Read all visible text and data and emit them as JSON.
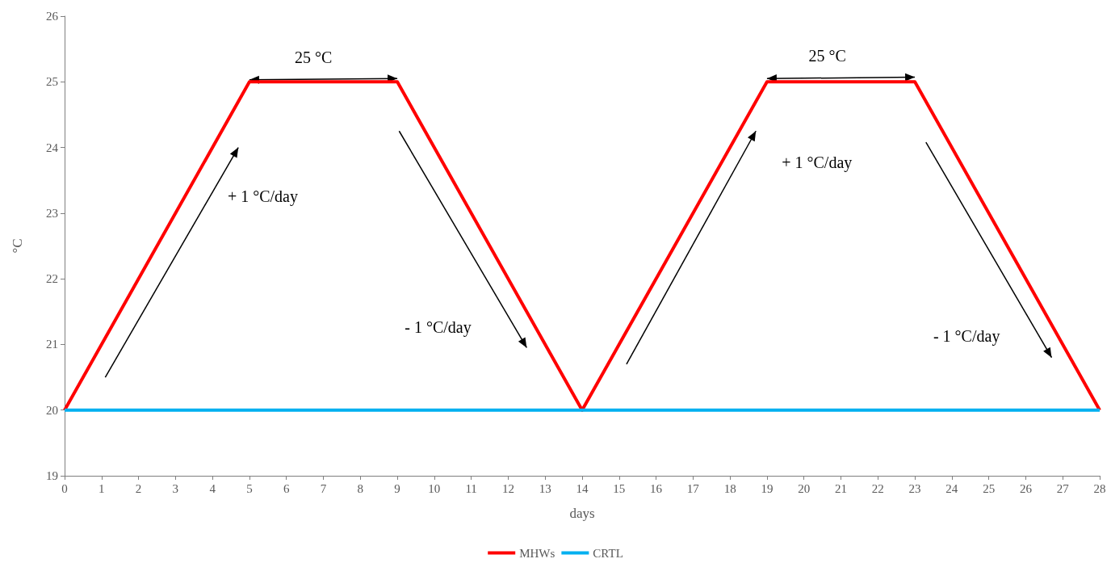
{
  "chart_data": {
    "type": "line",
    "xlabel": "days",
    "ylabel": "°C",
    "xlim": [
      0,
      28
    ],
    "xticks": [
      0,
      1,
      2,
      3,
      4,
      5,
      6,
      7,
      8,
      9,
      10,
      11,
      12,
      13,
      14,
      15,
      16,
      17,
      18,
      19,
      20,
      21,
      22,
      23,
      24,
      25,
      26,
      27,
      28
    ],
    "ylim": [
      19,
      26
    ],
    "yticks": [
      19,
      20,
      21,
      22,
      23,
      24,
      25,
      26
    ],
    "series": [
      {
        "name": "MHWs",
        "color": "#ff0000",
        "x": [
          0,
          5,
          9,
          14,
          19,
          23,
          28
        ],
        "values": [
          20,
          25,
          25,
          20,
          25,
          25,
          20
        ]
      },
      {
        "name": "CRTL",
        "color": "#00b0f0",
        "x": [
          0,
          28
        ],
        "values": [
          20,
          20
        ]
      }
    ],
    "annotations": [
      "25 °C",
      "+ 1 °C/day",
      "- 1 °C/day",
      "25 °C",
      "+ 1 °C/day",
      "- 1 °C/day"
    ],
    "grid": false,
    "legend": "bottom",
    "marker": "none",
    "line_style": "solid"
  }
}
